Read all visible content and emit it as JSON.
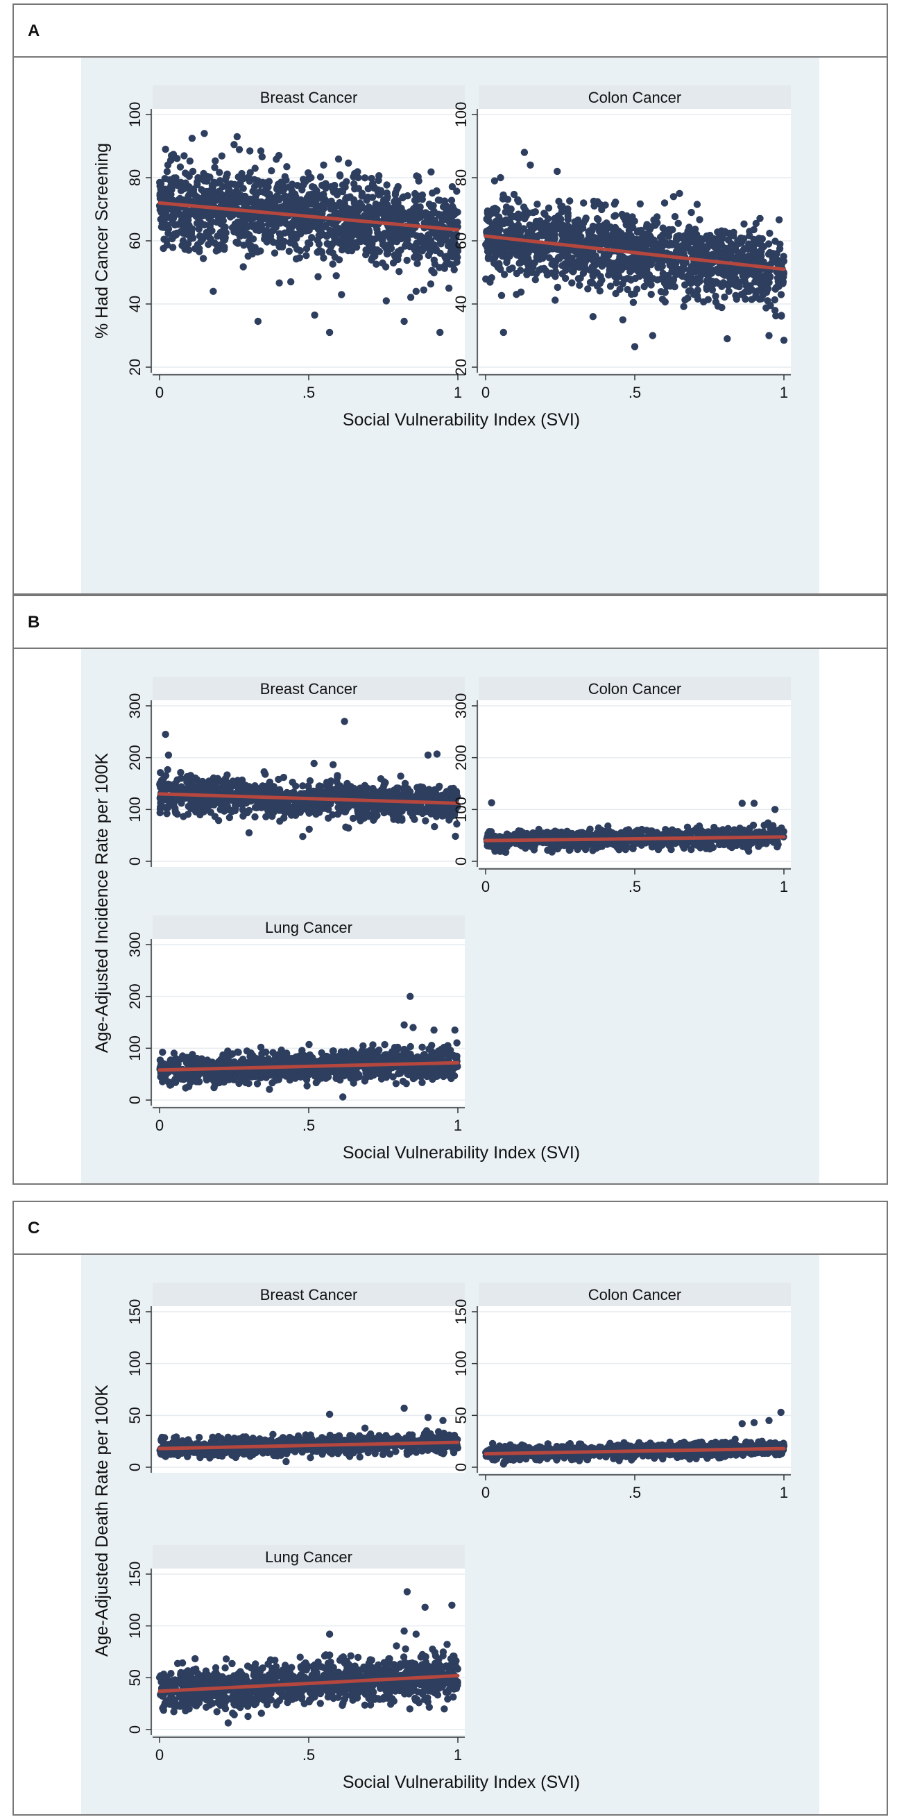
{
  "figure": {
    "panels": [
      {
        "letter": "A",
        "y_axis_title": "% Had Cancer Screening",
        "x_axis_title": "Social Vulnerability Index (SVI)"
      },
      {
        "letter": "B",
        "y_axis_title": "Age-Adjusted Incidence Rate per 100K",
        "x_axis_title": "Social Vulnerability Index (SVI)"
      },
      {
        "letter": "C",
        "y_axis_title": "Age-Adjusted Death Rate per 100K",
        "x_axis_title": "Social Vulnerability Index (SVI)"
      }
    ]
  },
  "colors": {
    "marker": "#2e3e5e",
    "fit_line": "#b5473e",
    "facet_strip": "#e4e9ee",
    "plot_bg": "#eaf1f4",
    "grid": "#e6ecef"
  },
  "chart_data": [
    {
      "type": "scatter",
      "panel": "A",
      "title": "",
      "xlabel": "Social Vulnerability Index (SVI)",
      "ylabel": "% Had Cancer Screening",
      "xlim": [
        0,
        1
      ],
      "ylim": [
        20,
        100
      ],
      "xticks": [
        {
          "value": 0,
          "label": "0"
        },
        {
          "value": 0.5,
          "label": ".5"
        },
        {
          "value": 1,
          "label": "1"
        }
      ],
      "yticks": [
        20,
        40,
        60,
        80,
        100
      ],
      "facets": [
        {
          "name": "Breast Cancer",
          "fit": {
            "x": [
              0,
              1
            ],
            "y": [
              72,
              63.5
            ]
          },
          "spread": 6.5,
          "n": 1400,
          "outliers": [
            [
              0.15,
              94
            ],
            [
              0.26,
              93
            ],
            [
              0.02,
              89
            ],
            [
              0.04,
              87
            ],
            [
              0.4,
              87
            ],
            [
              0.55,
              84
            ],
            [
              0.33,
              34.5
            ],
            [
              0.52,
              36.5
            ],
            [
              0.57,
              31
            ],
            [
              0.94,
              31
            ],
            [
              0.82,
              34.5
            ],
            [
              0.76,
              41
            ],
            [
              0.86,
              44
            ],
            [
              0.97,
              45
            ],
            [
              0.18,
              44
            ],
            [
              0.44,
              47
            ],
            [
              0.61,
              43
            ]
          ]
        },
        {
          "name": "Colon Cancer",
          "fit": {
            "x": [
              0,
              1
            ],
            "y": [
              61.5,
              51
            ]
          },
          "spread": 6,
          "n": 1400,
          "outliers": [
            [
              0.13,
              88
            ],
            [
              0.15,
              84
            ],
            [
              0.24,
              82
            ],
            [
              0.03,
              79
            ],
            [
              0.05,
              80
            ],
            [
              0.65,
              75
            ],
            [
              0.63,
              74
            ],
            [
              0.6,
              72
            ],
            [
              0.5,
              26.5
            ],
            [
              0.56,
              30
            ],
            [
              0.81,
              29
            ],
            [
              0.95,
              30
            ],
            [
              1.0,
              28.5
            ],
            [
              0.06,
              31
            ],
            [
              0.36,
              36
            ],
            [
              0.46,
              35
            ]
          ]
        }
      ]
    },
    {
      "type": "scatter",
      "panel": "B",
      "title": "",
      "xlabel": "Social Vulnerability Index (SVI)",
      "ylabel": "Age-Adjusted Incidence Rate per 100K",
      "xlim": [
        0,
        1
      ],
      "ylim": [
        0,
        300
      ],
      "xticks": [
        {
          "value": 0,
          "label": "0"
        },
        {
          "value": 0.5,
          "label": ".5"
        },
        {
          "value": 1,
          "label": "1"
        }
      ],
      "yticks": [
        0,
        100,
        200,
        300
      ],
      "facets": [
        {
          "name": "Breast Cancer",
          "fit": {
            "x": [
              0,
              1
            ],
            "y": [
              130,
              112
            ]
          },
          "spread": 18,
          "n": 1000,
          "outliers": [
            [
              0.02,
              245
            ],
            [
              0.62,
              270
            ],
            [
              0.03,
              205
            ],
            [
              0.9,
              205
            ],
            [
              0.93,
              207
            ],
            [
              0.48,
              48
            ],
            [
              0.3,
              55
            ]
          ]
        },
        {
          "name": "Colon Cancer",
          "fit": {
            "x": [
              0,
              1
            ],
            "y": [
              40,
              47
            ]
          },
          "spread": 9,
          "n": 900,
          "outliers": [
            [
              0.02,
              113
            ],
            [
              0.86,
              112
            ],
            [
              0.9,
              112
            ],
            [
              0.97,
              100
            ]
          ]
        },
        {
          "name": "Lung Cancer",
          "fit": {
            "x": [
              0,
              1
            ],
            "y": [
              58,
              72
            ]
          },
          "spread": 14,
          "n": 1100,
          "outliers": [
            [
              0.84,
              200
            ],
            [
              0.82,
              145
            ],
            [
              0.85,
              140
            ],
            [
              0.92,
              135
            ],
            [
              0.99,
              135
            ]
          ]
        }
      ]
    },
    {
      "type": "scatter",
      "panel": "C",
      "title": "",
      "xlabel": "Social Vulnerability Index (SVI)",
      "ylabel": "Age-Adjusted Death Rate per 100K",
      "xlim": [
        0,
        1
      ],
      "ylim": [
        0,
        150
      ],
      "xticks": [
        {
          "value": 0,
          "label": "0"
        },
        {
          "value": 0.5,
          "label": ".5"
        },
        {
          "value": 1,
          "label": "1"
        }
      ],
      "yticks": [
        0,
        50,
        100,
        150
      ],
      "facets": [
        {
          "name": "Breast Cancer",
          "fit": {
            "x": [
              0,
              1
            ],
            "y": [
              18,
              24
            ]
          },
          "spread": 4.5,
          "n": 900,
          "outliers": [
            [
              0.57,
              51
            ],
            [
              0.82,
              57
            ],
            [
              0.9,
              48
            ],
            [
              0.95,
              45
            ]
          ]
        },
        {
          "name": "Colon Cancer",
          "fit": {
            "x": [
              0,
              1
            ],
            "y": [
              13,
              18
            ]
          },
          "spread": 3.5,
          "n": 900,
          "outliers": [
            [
              0.99,
              53
            ],
            [
              0.95,
              45
            ],
            [
              0.9,
              43
            ],
            [
              0.86,
              42
            ]
          ]
        },
        {
          "name": "Lung Cancer",
          "fit": {
            "x": [
              0,
              1
            ],
            "y": [
              37,
              52
            ]
          },
          "spread": 10,
          "n": 1200,
          "outliers": [
            [
              0.83,
              133
            ],
            [
              0.89,
              118
            ],
            [
              0.98,
              120
            ],
            [
              0.82,
              95
            ],
            [
              0.86,
              92
            ],
            [
              0.57,
              92
            ]
          ]
        }
      ]
    }
  ]
}
